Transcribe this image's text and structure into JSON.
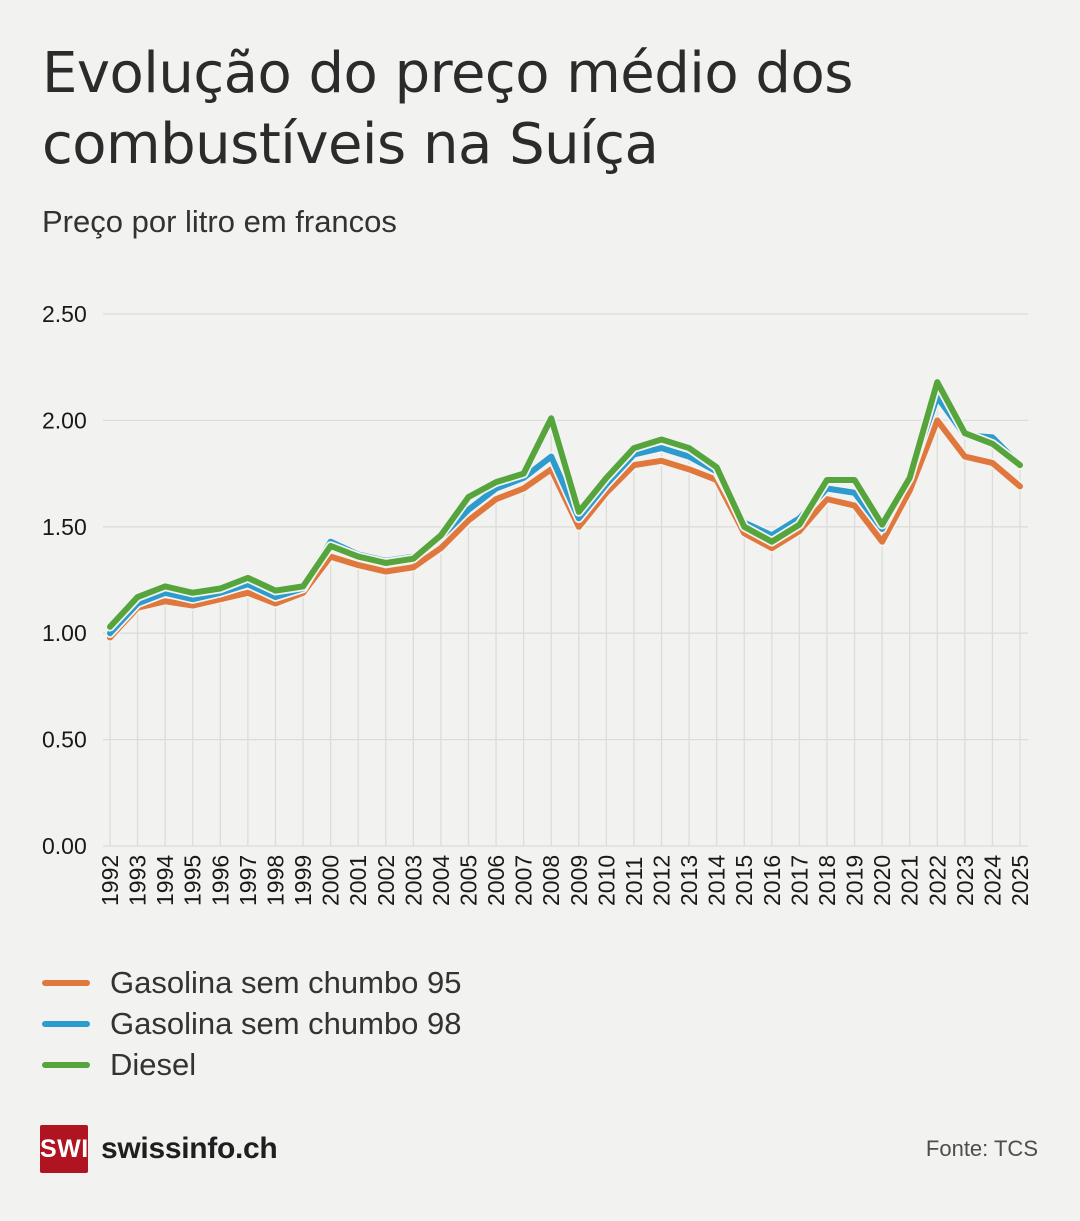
{
  "header": {
    "title": "Evolução do preço médio dos combustíveis na Suíça",
    "subtitle": "Preço por litro em francos"
  },
  "chart_data": {
    "type": "line",
    "x": [
      1992,
      1993,
      1994,
      1995,
      1996,
      1997,
      1998,
      1999,
      2000,
      2001,
      2002,
      2003,
      2004,
      2005,
      2006,
      2007,
      2008,
      2009,
      2010,
      2011,
      2012,
      2013,
      2014,
      2015,
      2016,
      2017,
      2018,
      2019,
      2020,
      2021,
      2022,
      2023,
      2024,
      2025
    ],
    "series": [
      {
        "name": "Gasolina sem chumbo 95",
        "color": "#e0773d",
        "values": [
          0.98,
          1.12,
          1.15,
          1.13,
          1.16,
          1.19,
          1.14,
          1.19,
          1.36,
          1.32,
          1.29,
          1.31,
          1.4,
          1.53,
          1.63,
          1.68,
          1.77,
          1.5,
          1.66,
          1.79,
          1.81,
          1.77,
          1.72,
          1.47,
          1.4,
          1.48,
          1.63,
          1.6,
          1.43,
          1.67,
          2.0,
          1.83,
          1.8,
          1.69
        ]
      },
      {
        "name": "Gasolina sem chumbo 98",
        "color": "#2d9bce",
        "values": [
          1.0,
          1.14,
          1.19,
          1.16,
          1.19,
          1.23,
          1.17,
          1.21,
          1.43,
          1.37,
          1.34,
          1.36,
          1.45,
          1.58,
          1.68,
          1.73,
          1.83,
          1.54,
          1.7,
          1.84,
          1.87,
          1.83,
          1.76,
          1.52,
          1.46,
          1.54,
          1.68,
          1.66,
          1.49,
          1.74,
          2.11,
          1.93,
          1.92,
          1.79
        ]
      },
      {
        "name": "Diesel",
        "color": "#56a53c",
        "values": [
          1.03,
          1.17,
          1.22,
          1.19,
          1.21,
          1.26,
          1.2,
          1.22,
          1.41,
          1.36,
          1.33,
          1.35,
          1.46,
          1.64,
          1.71,
          1.75,
          2.01,
          1.57,
          1.73,
          1.87,
          1.91,
          1.87,
          1.78,
          1.5,
          1.43,
          1.51,
          1.72,
          1.72,
          1.51,
          1.73,
          2.18,
          1.94,
          1.89,
          1.79
        ]
      }
    ],
    "ylim": [
      0,
      2.5
    ],
    "yticks": [
      "0.00",
      "0.50",
      "1.00",
      "1.50",
      "2.00",
      "2.50"
    ],
    "grid": "on",
    "legend_position": "bottom-left"
  },
  "footer": {
    "logo_box": "SWI",
    "logo_text": "swissinfo.ch",
    "source": "Fonte: TCS"
  },
  "colors": {
    "background": "#f2f2f0",
    "gridline": "#dcdcd8",
    "axis_text": "#191919",
    "brand_red": "#b01420"
  }
}
